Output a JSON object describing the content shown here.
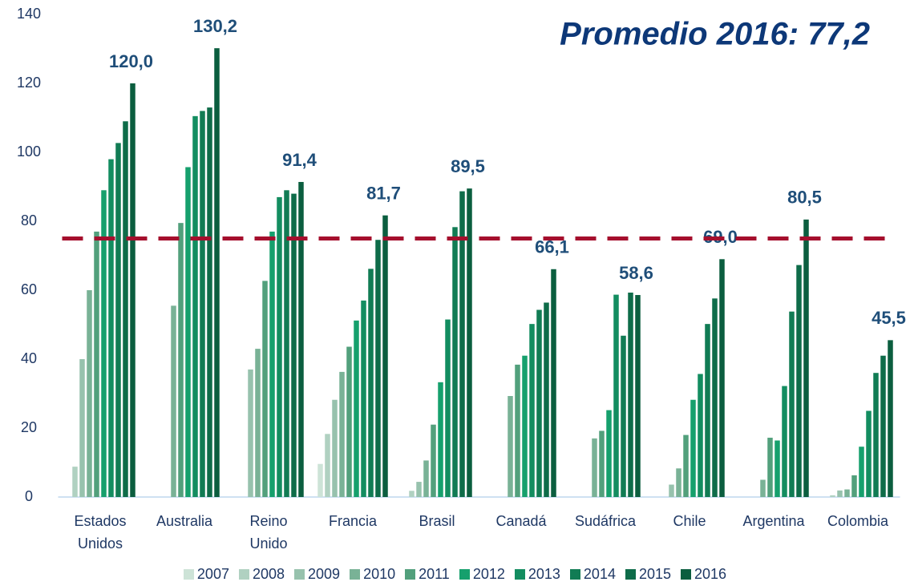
{
  "chart_data": {
    "type": "bar",
    "annotation": "Promedio 2016: 77,2",
    "reference_line": {
      "value": 75,
      "color": "#a50f2d"
    },
    "categories": [
      "Estados Unidos",
      "Australia",
      "Reino Unido",
      "Francia",
      "Brasil",
      "Canadá",
      "Sudáfrica",
      "Chile",
      "Argentina",
      "Colombia"
    ],
    "series": [
      {
        "name": "2007",
        "color": "#cde3d7",
        "values": [
          null,
          null,
          null,
          9.6,
          null,
          null,
          null,
          null,
          null,
          null
        ]
      },
      {
        "name": "2008",
        "color": "#b0d1c1",
        "values": [
          8.8,
          null,
          null,
          18.3,
          1.8,
          null,
          null,
          null,
          null,
          0.5
        ]
      },
      {
        "name": "2009",
        "color": "#97c2ad",
        "values": [
          40,
          null,
          37,
          28.2,
          4.4,
          null,
          null,
          3.6,
          null,
          1.9
        ]
      },
      {
        "name": "2010",
        "color": "#79b296",
        "values": [
          60,
          55.5,
          43,
          36.3,
          10.6,
          29.3,
          17,
          8.3,
          5,
          2.2
        ]
      },
      {
        "name": "2011",
        "color": "#52a07c",
        "values": [
          77,
          79.5,
          62.7,
          43.6,
          21,
          38.4,
          19.2,
          18,
          17.2,
          6.3
        ]
      },
      {
        "name": "2012",
        "color": "#16a06d",
        "values": [
          89,
          95.7,
          77,
          51.2,
          33.3,
          41,
          25.2,
          28.2,
          16.4,
          14.6
        ]
      },
      {
        "name": "2013",
        "color": "#138d60",
        "values": [
          98,
          110.5,
          87,
          57,
          51.5,
          50.2,
          58.7,
          35.7,
          32.2,
          25
        ]
      },
      {
        "name": "2014",
        "color": "#117c54",
        "values": [
          102.7,
          112,
          89,
          66.2,
          78.3,
          54.3,
          46.8,
          50.2,
          53.8,
          36
        ]
      },
      {
        "name": "2015",
        "color": "#0e6c49",
        "values": [
          109,
          113,
          88,
          74.6,
          88.7,
          56.4,
          59.3,
          57.6,
          67.3,
          41
        ]
      },
      {
        "name": "2016",
        "color": "#0b5e3f",
        "values": [
          120,
          130.2,
          91.4,
          81.7,
          89.5,
          66.1,
          58.6,
          69,
          80.5,
          45.5
        ],
        "value_labels": [
          "120,0",
          "130,2",
          "91,4",
          "81,7",
          "89,5",
          "66,1",
          "58,6",
          "69,0",
          "80,5",
          "45,5"
        ]
      }
    ],
    "ylim": [
      0,
      140
    ],
    "yticks": [
      0,
      20,
      40,
      60,
      80,
      100,
      120,
      140
    ],
    "grid": false
  }
}
